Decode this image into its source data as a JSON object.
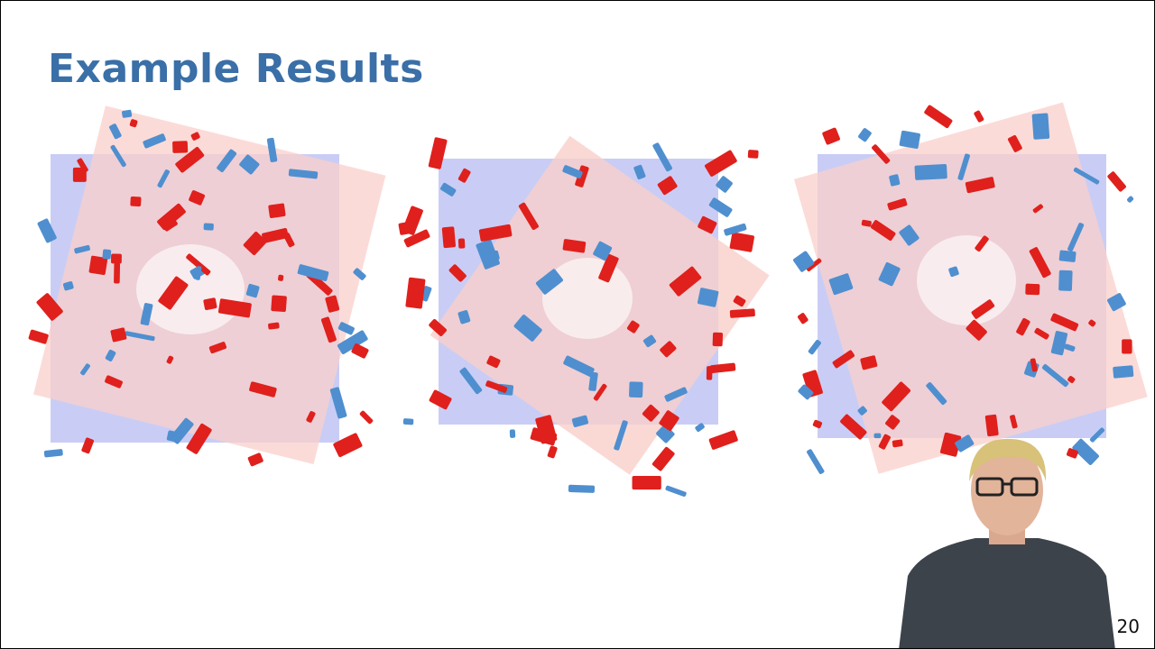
{
  "slide": {
    "title": "Example Results",
    "page_number": "20"
  },
  "figures": [
    {
      "name": "result-map-1"
    },
    {
      "name": "result-map-2"
    },
    {
      "name": "result-map-3"
    }
  ],
  "colors": {
    "title": "#3a6fa8",
    "floor_lavender": "#c9cdf5",
    "floor_pink": "#f9cfcb",
    "object_red": "#e0201c",
    "object_blue": "#4f8fcf",
    "presenter_shirt": "#3d434b"
  }
}
